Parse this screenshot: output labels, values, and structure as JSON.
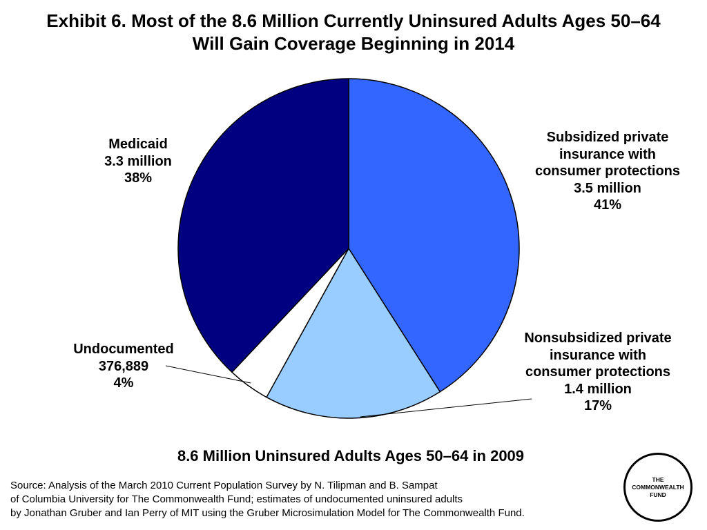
{
  "title": {
    "line1": "Exhibit 6. Most of the 8.6 Million Currently Uninsured Adults Ages 50–64",
    "line2": "Will Gain Coverage Beginning in 2014"
  },
  "chart_data": {
    "type": "pie",
    "title": "Exhibit 6. Most of the 8.6 Million Currently Uninsured Adults Ages 50–64 Will Gain Coverage Beginning in 2014",
    "subtitle": "8.6 Million Uninsured Adults Ages 50–64 in 2009",
    "start_angle_deg": 0,
    "direction": "clockwise",
    "slices": [
      {
        "key": "subsidized",
        "label_lines": [
          "Subsidized private",
          "insurance with",
          "consumer protections",
          "3.5 million",
          "41%"
        ],
        "value": 41,
        "amount": "3.5 million",
        "color": "#3366ff"
      },
      {
        "key": "nonsubsidized",
        "label_lines": [
          "Nonsubsidized private",
          "insurance with",
          "consumer protections",
          "1.4 million",
          "17%"
        ],
        "value": 17,
        "amount": "1.4 million",
        "color": "#99ccff"
      },
      {
        "key": "undocumented",
        "label_lines": [
          "Undocumented",
          "376,889",
          "4%"
        ],
        "value": 4,
        "amount": "376,889",
        "color": "#ffffff"
      },
      {
        "key": "medicaid",
        "label_lines": [
          "Medicaid",
          "3.3 million",
          "38%"
        ],
        "value": 38,
        "amount": "3.3 million",
        "color": "#000080"
      }
    ]
  },
  "subtitle": "8.6 Million Uninsured Adults Ages 50–64 in 2009",
  "source": {
    "line1": "Source: Analysis of the March 2010 Current Population Survey by N. Tilipman and B. Sampat",
    "line2": "of Columbia University for The Commonwealth Fund; estimates of undocumented uninsured adults",
    "line3": "by Jonathan Gruber and Ian Perry of MIT using the Gruber Microsimulation Model for The Commonwealth Fund."
  },
  "logo": {
    "line1": "THE",
    "line2": "COMMONWEALTH",
    "line3": "FUND"
  }
}
